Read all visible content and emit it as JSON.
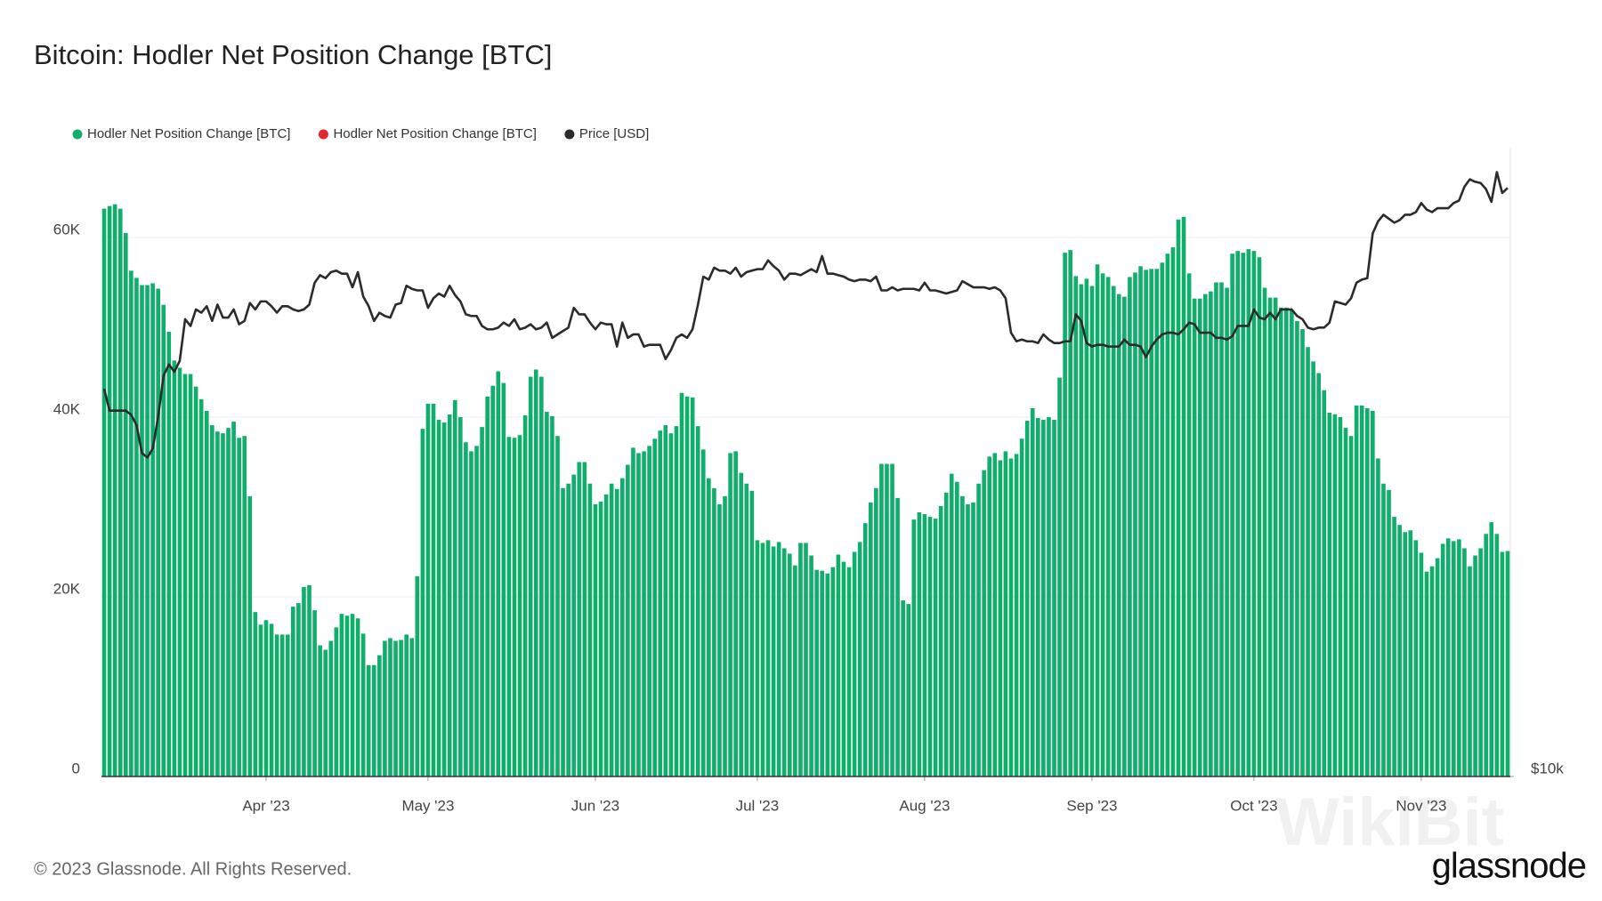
{
  "chart_data": {
    "type": "bar",
    "title": "Bitcoin: Hodler Net Position Change [BTC]",
    "footer": "© 2023 Glassnode. All Rights Reserved.",
    "brand": "glassnode",
    "watermark": "WikiBit",
    "grid": true,
    "legend": "top-left",
    "categories": [
      null,
      null,
      null,
      null,
      null,
      null,
      null,
      null,
      null,
      null,
      null,
      null,
      null,
      null,
      null,
      null,
      null,
      null,
      null,
      null,
      null,
      null,
      null,
      null,
      null,
      null,
      null,
      null,
      null,
      null,
      "Apr '23",
      null,
      null,
      null,
      null,
      null,
      null,
      null,
      null,
      null,
      null,
      null,
      null,
      null,
      null,
      null,
      null,
      null,
      null,
      null,
      null,
      null,
      null,
      null,
      null,
      null,
      null,
      null,
      null,
      null,
      "May '23",
      null,
      null,
      null,
      null,
      null,
      null,
      null,
      null,
      null,
      null,
      null,
      null,
      null,
      null,
      null,
      null,
      null,
      null,
      null,
      null,
      null,
      null,
      null,
      null,
      null,
      null,
      null,
      null,
      null,
      null,
      "Jun '23",
      null,
      null,
      null,
      null,
      null,
      null,
      null,
      null,
      null,
      null,
      null,
      null,
      null,
      null,
      null,
      null,
      null,
      null,
      null,
      null,
      null,
      null,
      null,
      null,
      null,
      null,
      null,
      null,
      null,
      "Jul '23",
      null,
      null,
      null,
      null,
      null,
      null,
      null,
      null,
      null,
      null,
      null,
      null,
      null,
      null,
      null,
      null,
      null,
      null,
      null,
      null,
      null,
      null,
      null,
      null,
      null,
      null,
      null,
      null,
      null,
      null,
      "Aug '23",
      null,
      null,
      null,
      null,
      null,
      null,
      null,
      null,
      null,
      null,
      null,
      null,
      null,
      null,
      null,
      null,
      null,
      null,
      null,
      null,
      null,
      null,
      null,
      null,
      null,
      null,
      null,
      null,
      null,
      null,
      "Sep '23",
      null,
      null,
      null,
      null,
      null,
      null,
      null,
      null,
      null,
      null,
      null,
      null,
      null,
      null,
      null,
      null,
      null,
      null,
      null,
      null,
      null,
      null,
      null,
      null,
      null,
      null,
      null,
      null,
      null,
      "Oct '23",
      null,
      null,
      null,
      null,
      null,
      null,
      null,
      null,
      null,
      null,
      null,
      null,
      null,
      null,
      null,
      null,
      null,
      null,
      null,
      null,
      null,
      null,
      null,
      null,
      null,
      null,
      null,
      null,
      null,
      null,
      "Nov '23",
      null,
      null,
      null,
      null,
      null,
      null,
      null,
      null,
      null,
      null,
      null,
      null,
      null,
      null,
      null,
      null
    ],
    "ylim": [
      0,
      70000
    ],
    "yticks": [
      0,
      {
        "value": 20000,
        "label": "20K"
      },
      {
        "value": 40000,
        "label": "40K"
      },
      {
        "value": 60000,
        "label": "60K"
      }
    ],
    "y2lim": [
      10000,
      40000
    ],
    "y2scale": "log",
    "y2ticks": [
      {
        "value": 10000,
        "label": "$10k"
      }
    ],
    "series": [
      {
        "name": "Hodler Net Position Change [BTC]",
        "color": "#0fae6b",
        "type": "bar",
        "values": [
          63200,
          63500,
          63700,
          63200,
          60500,
          56300,
          55500,
          54700,
          54700,
          54900,
          54300,
          52500,
          49500,
          46300,
          45500,
          44800,
          44800,
          43400,
          42000,
          40700,
          39100,
          38400,
          38200,
          38800,
          39500,
          37700,
          37900,
          31200,
          18300,
          16900,
          17400,
          17000,
          15800,
          15800,
          15800,
          18900,
          19300,
          21100,
          21300,
          18500,
          14600,
          14100,
          15100,
          16600,
          18100,
          17900,
          18100,
          17600,
          15900,
          12400,
          12400,
          13500,
          15100,
          15400,
          15100,
          15200,
          15800,
          15400,
          22300,
          38700,
          41500,
          41500,
          39700,
          39400,
          40300,
          41900,
          40000,
          37200,
          36200,
          36800,
          38900,
          42300,
          43500,
          45100,
          43800,
          37800,
          37700,
          38000,
          40200,
          44500,
          45300,
          44500,
          40600,
          40100,
          37900,
          32100,
          32600,
          33600,
          35000,
          35000,
          32600,
          30300,
          30600,
          31400,
          32600,
          32000,
          33200,
          34700,
          36600,
          36000,
          36200,
          36800,
          37600,
          38500,
          39100,
          38200,
          39000,
          42700,
          42300,
          42200,
          39000,
          36400,
          33200,
          32100,
          30300,
          31200,
          36000,
          36200,
          33800,
          32600,
          31800,
          26300,
          26000,
          26300,
          25600,
          26100,
          25400,
          24800,
          23500,
          26000,
          26000,
          24600,
          23000,
          22900,
          22600,
          23300,
          24700,
          23900,
          23300,
          25000,
          26100,
          28200,
          30500,
          32100,
          34800,
          34800,
          34800,
          31000,
          19600,
          19200,
          28600,
          29400,
          29200,
          28900,
          28700,
          30100,
          31600,
          33700,
          32800,
          31200,
          30300,
          30500,
          32600,
          34100,
          35600,
          36000,
          35200,
          36200,
          35400,
          35900,
          37600,
          39600,
          41000,
          39900,
          39700,
          40000,
          39700,
          44400,
          58300,
          58600,
          55700,
          54800,
          55400,
          54600,
          57000,
          56000,
          55600,
          54600,
          53700,
          53400,
          55600,
          56100,
          56800,
          56400,
          56500,
          56500,
          57200,
          58200,
          58900,
          62000,
          62300,
          56000,
          53200,
          53200,
          53700,
          54000,
          55000,
          55000,
          54400,
          58200,
          58500,
          58300,
          58700,
          58500,
          57800,
          54400,
          53300,
          53300,
          52200,
          52200,
          51900,
          50700,
          49800,
          47800,
          46200,
          44900,
          43000,
          40500,
          40300,
          40000,
          38800,
          37900,
          41300,
          41300,
          41000,
          40700,
          35400,
          32600,
          31900,
          28900,
          28000,
          27200,
          27400,
          26300,
          24900,
          22800,
          23400,
          24300,
          25900,
          26500,
          26200,
          26400,
          25400,
          23400,
          24600,
          25400,
          27000,
          28300,
          27000,
          25000,
          25100
        ]
      },
      {
        "name": "Hodler Net Position Change [BTC]",
        "color": "#e5242b",
        "type": "bar",
        "values": [
          null,
          null,
          null,
          null,
          null,
          null,
          null,
          null,
          null,
          null,
          null,
          null,
          null,
          null,
          null,
          null,
          null,
          null,
          null,
          null,
          null,
          null,
          null,
          null,
          null,
          null,
          null,
          null,
          null,
          null,
          null,
          null,
          null,
          null,
          null,
          null,
          null,
          null,
          null,
          null,
          null,
          null,
          null,
          null,
          null,
          null,
          null,
          null,
          null,
          null,
          null,
          null,
          null,
          null,
          null,
          null,
          null,
          null,
          null,
          null,
          null,
          null,
          null,
          null,
          null,
          null,
          null,
          null,
          null,
          null,
          null,
          null,
          null,
          null,
          null,
          null,
          null,
          null,
          null,
          null,
          null,
          null,
          null,
          null,
          null,
          null,
          null,
          null,
          null,
          null,
          null,
          null,
          null,
          null,
          null,
          null,
          null,
          null,
          null,
          null,
          null,
          null,
          null,
          null,
          null,
          null,
          null,
          null,
          null,
          null,
          null,
          null,
          null,
          null,
          null,
          null,
          null,
          null,
          null,
          null,
          null,
          null,
          null,
          null,
          null,
          null,
          null,
          null,
          null,
          null,
          null,
          null,
          null,
          null,
          null,
          null,
          null,
          null,
          null,
          null,
          null,
          null,
          null,
          null,
          null,
          null,
          null,
          null,
          null,
          null,
          null,
          null,
          null,
          null,
          null,
          null,
          null,
          null,
          null,
          null,
          null,
          null,
          null,
          null,
          null,
          null,
          null,
          null,
          null,
          null,
          null,
          null,
          null,
          null,
          null,
          null,
          null,
          null,
          null,
          null,
          null,
          null,
          null,
          null,
          null,
          null,
          null,
          null,
          null,
          null,
          null,
          null,
          null,
          null,
          null,
          null,
          null,
          null,
          null,
          null,
          null,
          null,
          null,
          null,
          null,
          null,
          null,
          null,
          null,
          null,
          null,
          null,
          null,
          null,
          null,
          null,
          null,
          null,
          null,
          null,
          null,
          null,
          null,
          null,
          null,
          null,
          null,
          null,
          null,
          null,
          null,
          null,
          null,
          null,
          null,
          null,
          null,
          null,
          null,
          null,
          null,
          null,
          null,
          null,
          null,
          null,
          null,
          null,
          null,
          null,
          null,
          null,
          null,
          null,
          null,
          null,
          null,
          null,
          null,
          null,
          null
        ]
      },
      {
        "name": "Price [USD]",
        "color": "#2b2b2b",
        "type": "line",
        "axis": "y2",
        "values": [
          23500,
          22400,
          22400,
          22400,
          22400,
          22200,
          21700,
          20400,
          20200,
          20600,
          22100,
          24200,
          24800,
          24400,
          25000,
          27400,
          27000,
          28000,
          27800,
          28200,
          27300,
          28300,
          27500,
          27500,
          28000,
          27100,
          27300,
          28400,
          28000,
          28500,
          28500,
          28200,
          27800,
          28200,
          28200,
          28000,
          27900,
          28000,
          28300,
          29700,
          30200,
          30000,
          30400,
          30500,
          30300,
          30300,
          29400,
          30400,
          28800,
          28200,
          27300,
          27800,
          27600,
          27500,
          28300,
          28400,
          29500,
          29300,
          29200,
          29200,
          28100,
          28700,
          29000,
          28800,
          29500,
          28900,
          28500,
          27700,
          27600,
          27600,
          27000,
          26800,
          26800,
          26900,
          27200,
          27000,
          27400,
          26800,
          26900,
          27100,
          26800,
          26900,
          27200,
          26300,
          26500,
          26700,
          26900,
          28100,
          27700,
          27700,
          27200,
          26800,
          27200,
          27100,
          27100,
          25800,
          27200,
          26300,
          26500,
          26500,
          25800,
          25900,
          25900,
          25900,
          25100,
          25600,
          26300,
          26500,
          26300,
          26800,
          28300,
          30100,
          29900,
          30700,
          30500,
          30500,
          30300,
          30700,
          30100,
          30400,
          30500,
          30600,
          30600,
          31200,
          30800,
          30500,
          29900,
          30300,
          30300,
          30200,
          30400,
          30600,
          30400,
          31500,
          30300,
          30300,
          30200,
          30100,
          29900,
          29800,
          29900,
          29900,
          29800,
          30100,
          29200,
          29200,
          29400,
          29200,
          29300,
          29300,
          29300,
          29200,
          29700,
          29200,
          29200,
          29100,
          29000,
          29100,
          29200,
          29800,
          29600,
          29400,
          29400,
          29400,
          29300,
          29400,
          29200,
          28700,
          26600,
          26100,
          26200,
          26100,
          26100,
          26000,
          26500,
          26200,
          26000,
          26000,
          26100,
          26100,
          27700,
          27300,
          26000,
          25800,
          25900,
          25900,
          25800,
          25800,
          25800,
          26200,
          25900,
          25900,
          25800,
          25200,
          25800,
          26200,
          26500,
          26600,
          26600,
          26500,
          26800,
          27200,
          27100,
          26600,
          26600,
          26600,
          26300,
          26300,
          26200,
          26400,
          27000,
          27000,
          27000,
          28000,
          27500,
          27400,
          27800,
          27400,
          28000,
          28000,
          28000,
          27600,
          27400,
          26900,
          26800,
          26900,
          26900,
          27200,
          28500,
          28400,
          28300,
          28700,
          29700,
          29900,
          30000,
          33100,
          34000,
          34500,
          34200,
          33900,
          34100,
          34500,
          34500,
          34700,
          35400,
          34900,
          34700,
          35000,
          35000,
          35000,
          35400,
          35600,
          36700,
          37300,
          37100,
          37000,
          36500,
          35500,
          37900,
          36200,
          36600
        ]
      }
    ]
  }
}
